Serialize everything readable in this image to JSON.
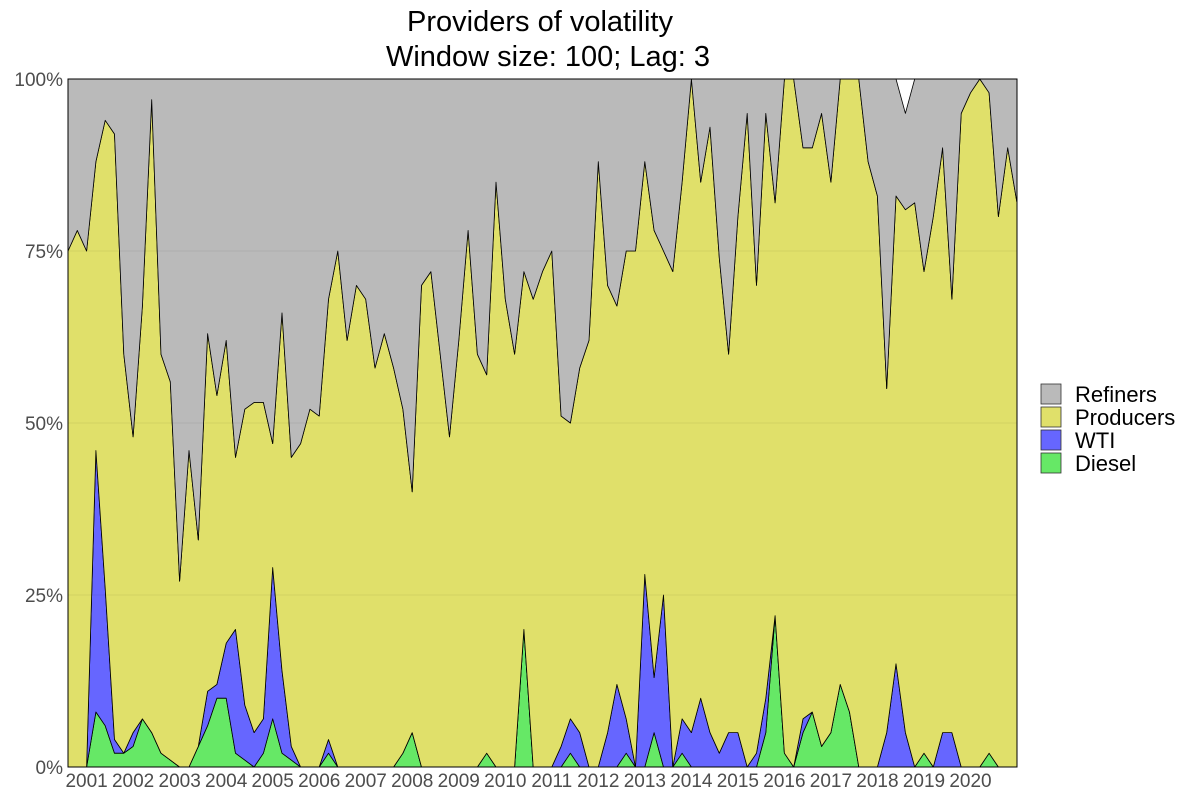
{
  "chart_data": {
    "type": "area",
    "stacking": "percent",
    "title": "Providers of volatility",
    "subtitle": "Window size: 100; Lag: 3",
    "xlabel": "",
    "ylabel": "",
    "ylim": [
      0,
      1
    ],
    "y_ticks": [
      "0%",
      "25%",
      "50%",
      "75%",
      "100%"
    ],
    "x_ticks": [
      "2001",
      "2002",
      "2003",
      "2004",
      "2005",
      "2006",
      "2007",
      "2008",
      "2009",
      "2010",
      "2011",
      "2012",
      "2013",
      "2014",
      "2015",
      "2016",
      "2017",
      "2018",
      "2019",
      "2020"
    ],
    "xlim": [
      2000.6,
      2021.0
    ],
    "grid": "on",
    "legend_position": "right",
    "legend": [
      "Refiners",
      "Producers",
      "WTI",
      "Diesel"
    ],
    "x": [
      2000.6,
      2000.8,
      2001.0,
      2001.2,
      2001.4,
      2001.6,
      2001.8,
      2002.0,
      2002.2,
      2002.4,
      2002.6,
      2002.8,
      2003.0,
      2003.2,
      2003.4,
      2003.6,
      2003.8,
      2004.0,
      2004.2,
      2004.4,
      2004.6,
      2004.8,
      2005.0,
      2005.2,
      2005.4,
      2005.6,
      2005.8,
      2006.0,
      2006.2,
      2006.4,
      2006.6,
      2006.8,
      2007.0,
      2007.2,
      2007.4,
      2007.6,
      2007.8,
      2008.0,
      2008.2,
      2008.4,
      2008.6,
      2008.8,
      2009.0,
      2009.2,
      2009.4,
      2009.6,
      2009.8,
      2010.0,
      2010.2,
      2010.4,
      2010.6,
      2010.8,
      2011.0,
      2011.2,
      2011.4,
      2011.6,
      2011.8,
      2012.0,
      2012.2,
      2012.4,
      2012.6,
      2012.8,
      2013.0,
      2013.2,
      2013.4,
      2013.6,
      2013.8,
      2014.0,
      2014.2,
      2014.4,
      2014.6,
      2014.8,
      2015.0,
      2015.2,
      2015.4,
      2015.6,
      2015.8,
      2016.0,
      2016.2,
      2016.4,
      2016.6,
      2016.8,
      2017.0,
      2017.2,
      2017.4,
      2017.6,
      2017.8,
      2018.0,
      2018.2,
      2018.4,
      2018.6,
      2018.8,
      2019.0,
      2019.2,
      2019.4,
      2019.6,
      2019.8,
      2020.0,
      2020.2,
      2020.4,
      2020.6,
      2020.8,
      2021.0
    ],
    "series": [
      {
        "name": "Diesel",
        "color": "#66e866",
        "values": [
          0.0,
          0.0,
          0.0,
          0.08,
          0.06,
          0.02,
          0.02,
          0.03,
          0.07,
          0.05,
          0.02,
          0.01,
          0.0,
          0.0,
          0.03,
          0.06,
          0.1,
          0.1,
          0.02,
          0.01,
          0.0,
          0.02,
          0.07,
          0.02,
          0.01,
          0.0,
          0.0,
          0.0,
          0.02,
          0.0,
          0.0,
          0.0,
          0.0,
          0.0,
          0.0,
          0.0,
          0.02,
          0.05,
          0.0,
          0.0,
          0.0,
          0.0,
          0.0,
          0.0,
          0.0,
          0.02,
          0.0,
          0.0,
          0.0,
          0.2,
          0.0,
          0.0,
          0.0,
          0.0,
          0.02,
          0.0,
          0.0,
          0.0,
          0.0,
          0.0,
          0.02,
          0.0,
          0.0,
          0.05,
          0.0,
          0.0,
          0.02,
          0.0,
          0.0,
          0.0,
          0.0,
          0.0,
          0.0,
          0.0,
          0.0,
          0.05,
          0.22,
          0.02,
          0.0,
          0.05,
          0.08,
          0.03,
          0.05,
          0.12,
          0.08,
          0.0,
          0.0,
          0.0,
          0.0,
          0.0,
          0.0,
          0.0,
          0.02,
          0.0,
          0.0,
          0.0,
          0.0,
          0.0,
          0.0,
          0.02,
          0.0,
          0.0,
          0.0
        ]
      },
      {
        "name": "WTI",
        "color": "#6666ff",
        "values": [
          0.0,
          0.0,
          0.0,
          0.38,
          0.2,
          0.02,
          0.0,
          0.02,
          0.0,
          0.0,
          0.0,
          0.0,
          0.0,
          0.0,
          0.0,
          0.05,
          0.02,
          0.08,
          0.18,
          0.08,
          0.05,
          0.05,
          0.22,
          0.12,
          0.02,
          0.0,
          0.0,
          0.0,
          0.02,
          0.0,
          0.0,
          0.0,
          0.0,
          0.0,
          0.0,
          0.0,
          0.0,
          0.0,
          0.0,
          0.0,
          0.0,
          0.0,
          0.0,
          0.0,
          0.0,
          0.0,
          0.0,
          0.0,
          0.0,
          0.0,
          0.0,
          0.0,
          0.0,
          0.03,
          0.05,
          0.05,
          0.0,
          0.0,
          0.05,
          0.12,
          0.05,
          0.0,
          0.28,
          0.08,
          0.25,
          0.0,
          0.05,
          0.05,
          0.1,
          0.05,
          0.02,
          0.05,
          0.05,
          0.0,
          0.02,
          0.05,
          0.0,
          0.0,
          0.0,
          0.02,
          0.0,
          0.0,
          0.0,
          0.0,
          0.0,
          0.0,
          0.0,
          0.0,
          0.05,
          0.15,
          0.05,
          0.0,
          0.0,
          0.0,
          0.05,
          0.05,
          0.0,
          0.0,
          0.0,
          0.0,
          0.0,
          0.0,
          0.0
        ]
      },
      {
        "name": "Producers",
        "color": "#e0e06a",
        "values": [
          0.75,
          0.78,
          0.75,
          0.42,
          0.68,
          0.88,
          0.58,
          0.43,
          0.6,
          0.92,
          0.58,
          0.55,
          0.27,
          0.46,
          0.3,
          0.52,
          0.42,
          0.44,
          0.25,
          0.43,
          0.48,
          0.46,
          0.18,
          0.52,
          0.42,
          0.47,
          0.52,
          0.51,
          0.64,
          0.75,
          0.62,
          0.7,
          0.68,
          0.58,
          0.63,
          0.58,
          0.5,
          0.35,
          0.7,
          0.72,
          0.6,
          0.48,
          0.62,
          0.78,
          0.6,
          0.55,
          0.85,
          0.68,
          0.6,
          0.52,
          0.68,
          0.72,
          0.75,
          0.48,
          0.43,
          0.53,
          0.62,
          0.88,
          0.65,
          0.55,
          0.68,
          0.75,
          0.6,
          0.65,
          0.5,
          0.72,
          0.78,
          0.95,
          0.75,
          0.88,
          0.72,
          0.55,
          0.75,
          0.95,
          0.68,
          0.85,
          0.6,
          0.98,
          1.0,
          0.83,
          0.82,
          0.92,
          0.8,
          0.88,
          0.92,
          1.0,
          0.88,
          0.83,
          0.5,
          0.68,
          0.76,
          0.82,
          0.7,
          0.8,
          0.85,
          0.63,
          0.95,
          0.98,
          1.0,
          0.96,
          0.8,
          0.9,
          0.82
        ]
      },
      {
        "name": "Refiners",
        "color": "#bababa",
        "values": [
          0.25,
          0.22,
          0.25,
          0.12,
          0.06,
          0.08,
          0.4,
          0.52,
          0.33,
          0.03,
          0.4,
          0.44,
          0.73,
          0.54,
          0.67,
          0.37,
          0.46,
          0.38,
          0.55,
          0.48,
          0.47,
          0.47,
          0.53,
          0.34,
          0.55,
          0.53,
          0.48,
          0.49,
          0.32,
          0.25,
          0.38,
          0.3,
          0.32,
          0.42,
          0.37,
          0.42,
          0.48,
          0.6,
          0.3,
          0.28,
          0.4,
          0.52,
          0.38,
          0.22,
          0.4,
          0.43,
          0.15,
          0.32,
          0.4,
          0.28,
          0.32,
          0.28,
          0.25,
          0.49,
          0.5,
          0.42,
          0.38,
          0.12,
          0.3,
          0.33,
          0.25,
          0.25,
          0.12,
          0.22,
          0.25,
          0.28,
          0.15,
          0.0,
          0.15,
          0.07,
          0.26,
          0.4,
          0.2,
          0.05,
          0.3,
          0.05,
          0.18,
          0.0,
          0.0,
          0.1,
          0.1,
          0.05,
          0.15,
          0.0,
          0.0,
          0.0,
          0.12,
          0.17,
          0.45,
          0.17,
          0.14,
          0.18,
          0.28,
          0.2,
          0.1,
          0.32,
          0.05,
          0.02,
          0.0,
          0.02,
          0.2,
          0.1,
          0.18
        ]
      }
    ]
  }
}
